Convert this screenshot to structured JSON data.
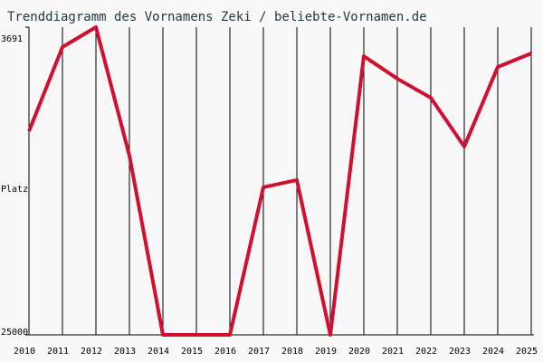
{
  "chart_data": {
    "type": "line",
    "title": "Trenddiagramm des Vornamens Zeki / beliebte-Vornamen.de",
    "y_label": "Platz",
    "categories": [
      "2010",
      "2011",
      "2012",
      "2013",
      "2014",
      "2015",
      "2016",
      "2017",
      "2018",
      "2019",
      "2020",
      "2021",
      "2022",
      "2023",
      "2024",
      "2025"
    ],
    "series": [
      {
        "name": "Zeki",
        "color": "#d0102e",
        "values": [
          10900,
          5070,
          3691,
          12590,
          25000,
          25000,
          25000,
          14780,
          14280,
          25000,
          5700,
          7260,
          8580,
          11960,
          6450,
          5510
        ]
      }
    ],
    "ylim": [
      3691,
      25000
    ],
    "yticks": [
      3691,
      25000
    ],
    "inverted": true,
    "grid": true
  }
}
